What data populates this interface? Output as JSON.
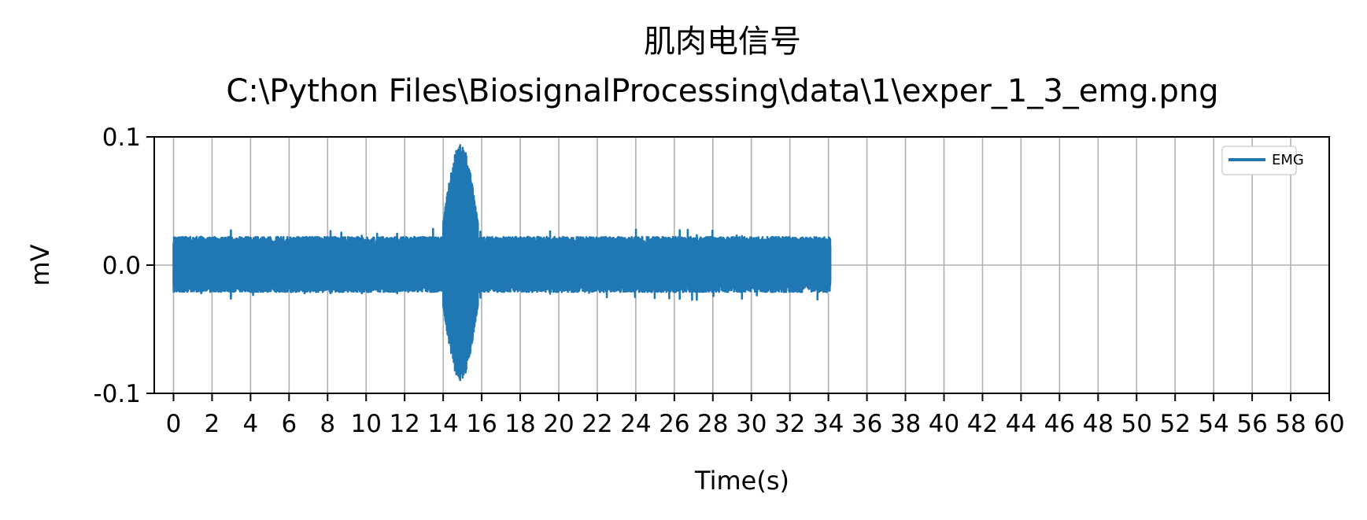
{
  "chart_data": {
    "type": "line",
    "title": "肌肉电信号",
    "subtitle": "C:\\Python Files\\BiosignalProcessing\\data\\1\\exper_1_3_emg.png",
    "xlabel": "Time(s)",
    "ylabel": "mV",
    "xlim": [
      -1,
      60
    ],
    "ylim": [
      -0.1,
      0.1
    ],
    "xticks": [
      0,
      2,
      4,
      6,
      8,
      10,
      12,
      14,
      16,
      18,
      20,
      22,
      24,
      26,
      28,
      30,
      32,
      34,
      36,
      38,
      40,
      42,
      44,
      46,
      48,
      50,
      52,
      54,
      56,
      58,
      60
    ],
    "xtick_labels": [
      "0",
      "2",
      "4",
      "6",
      "8",
      "10",
      "12",
      "14",
      "16",
      "18",
      "20",
      "22",
      "24",
      "26",
      "28",
      "30",
      "32",
      "34",
      "36",
      "38",
      "40",
      "42",
      "44",
      "46",
      "48",
      "50",
      "52",
      "54",
      "56",
      "58",
      "60"
    ],
    "yticks": [
      0.1,
      0.0,
      -0.1
    ],
    "ytick_labels": [
      "0.1",
      "0.0",
      "-0.1"
    ],
    "grid": true,
    "legend_position": "top-right",
    "series": [
      {
        "name": "EMG",
        "color": "#1f77b4",
        "x_range": [
          0,
          34.1
        ],
        "baseline_amplitude_max": 0.022,
        "baseline_amplitude_min": -0.021,
        "burst": {
          "x_start": 14.0,
          "x_end": 15.8,
          "peak_max": 0.094,
          "peak_min": -0.09
        }
      }
    ]
  }
}
